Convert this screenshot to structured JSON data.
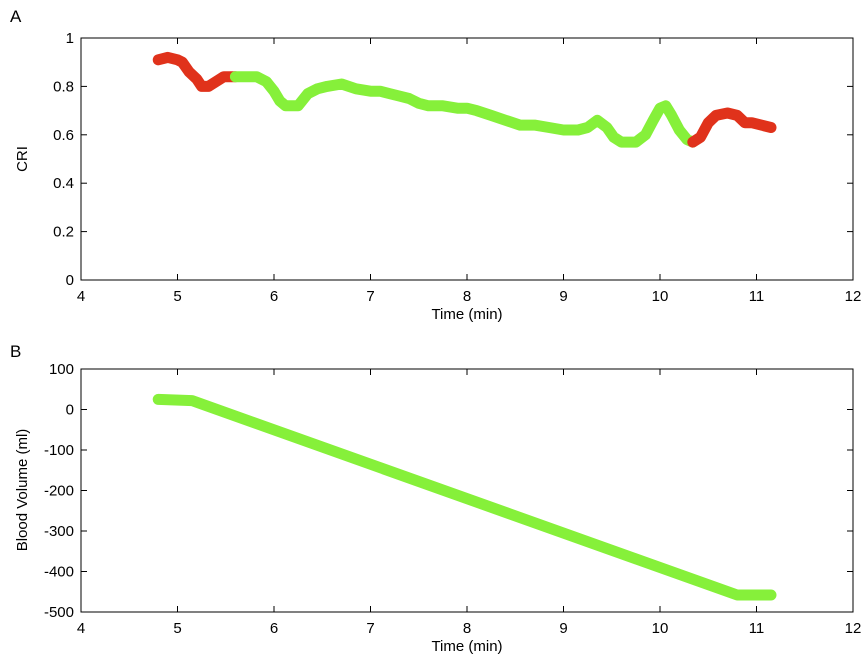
{
  "chart_data": [
    {
      "panel_label": "A",
      "type": "scatter",
      "xlabel": "Time (min)",
      "ylabel": "CRI",
      "xlim": [
        4,
        12
      ],
      "ylim": [
        0,
        1
      ],
      "xticks": [
        "4",
        "5",
        "6",
        "7",
        "8",
        "9",
        "10",
        "11",
        "12"
      ],
      "yticks": [
        "0",
        "0.2",
        "0.4",
        "0.6",
        "0.8",
        "1"
      ],
      "grid": false,
      "legend": "none",
      "colors": {
        "low_segment": "#e0321b",
        "normal_segment": "#86f03a"
      },
      "series": [
        {
          "color": "#e0321b",
          "points": [
            [
              4.8,
              0.91
            ],
            [
              4.9,
              0.92
            ],
            [
              5.0,
              0.91
            ],
            [
              5.05,
              0.9
            ],
            [
              5.12,
              0.86
            ],
            [
              5.2,
              0.83
            ],
            [
              5.25,
              0.8
            ],
            [
              5.32,
              0.8
            ],
            [
              5.4,
              0.82
            ],
            [
              5.48,
              0.84
            ],
            [
              5.55,
              0.84
            ],
            [
              5.6,
              0.84
            ]
          ]
        },
        {
          "color": "#86f03a",
          "points": [
            [
              5.6,
              0.84
            ],
            [
              5.7,
              0.84
            ],
            [
              5.82,
              0.84
            ],
            [
              5.92,
              0.82
            ],
            [
              6.0,
              0.78
            ],
            [
              6.06,
              0.74
            ],
            [
              6.12,
              0.72
            ],
            [
              6.25,
              0.72
            ],
            [
              6.35,
              0.77
            ],
            [
              6.45,
              0.79
            ],
            [
              6.55,
              0.8
            ],
            [
              6.7,
              0.81
            ],
            [
              6.85,
              0.79
            ],
            [
              7.0,
              0.78
            ],
            [
              7.1,
              0.78
            ],
            [
              7.2,
              0.77
            ],
            [
              7.3,
              0.76
            ],
            [
              7.4,
              0.75
            ],
            [
              7.5,
              0.73
            ],
            [
              7.6,
              0.72
            ],
            [
              7.75,
              0.72
            ],
            [
              7.9,
              0.71
            ],
            [
              8.0,
              0.71
            ],
            [
              8.1,
              0.7
            ],
            [
              8.25,
              0.68
            ],
            [
              8.4,
              0.66
            ],
            [
              8.55,
              0.64
            ],
            [
              8.7,
              0.64
            ],
            [
              8.85,
              0.63
            ],
            [
              9.0,
              0.62
            ],
            [
              9.15,
              0.62
            ],
            [
              9.25,
              0.63
            ],
            [
              9.35,
              0.66
            ],
            [
              9.45,
              0.63
            ],
            [
              9.52,
              0.59
            ],
            [
              9.6,
              0.57
            ],
            [
              9.75,
              0.57
            ],
            [
              9.85,
              0.6
            ],
            [
              9.93,
              0.66
            ],
            [
              10.0,
              0.71
            ],
            [
              10.06,
              0.72
            ],
            [
              10.12,
              0.68
            ],
            [
              10.2,
              0.62
            ],
            [
              10.28,
              0.58
            ],
            [
              10.34,
              0.57
            ]
          ]
        },
        {
          "color": "#e0321b",
          "points": [
            [
              10.34,
              0.57
            ],
            [
              10.42,
              0.59
            ],
            [
              10.5,
              0.65
            ],
            [
              10.58,
              0.68
            ],
            [
              10.7,
              0.69
            ],
            [
              10.8,
              0.68
            ],
            [
              10.88,
              0.65
            ],
            [
              10.95,
              0.65
            ],
            [
              11.05,
              0.64
            ],
            [
              11.15,
              0.63
            ]
          ]
        }
      ]
    },
    {
      "panel_label": "B",
      "type": "line",
      "xlabel": "Time (min)",
      "ylabel": "Blood Volume (ml)",
      "xlim": [
        4,
        12
      ],
      "ylim": [
        -500,
        100
      ],
      "xticks": [
        "4",
        "5",
        "6",
        "7",
        "8",
        "9",
        "10",
        "11",
        "12"
      ],
      "yticks": [
        "-500",
        "-400",
        "-300",
        "-200",
        "-100",
        "0",
        "100"
      ],
      "grid": false,
      "legend": "none",
      "series": [
        {
          "color": "#86f03a",
          "points": [
            [
              4.8,
              25
            ],
            [
              5.15,
              22
            ],
            [
              10.8,
              -458
            ],
            [
              11.15,
              -458
            ]
          ]
        }
      ]
    }
  ]
}
